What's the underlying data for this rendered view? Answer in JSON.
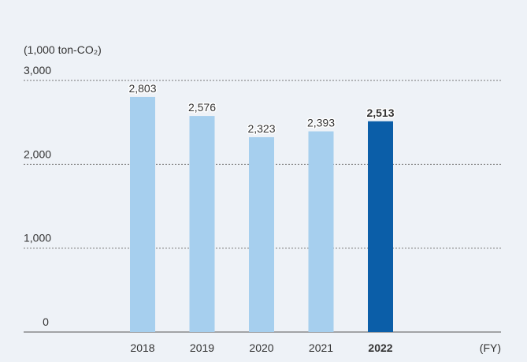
{
  "chart_data": {
    "type": "bar",
    "y_label": "(1,000 ton-CO₂)",
    "x_label": "(FY)",
    "categories": [
      "2018",
      "2019",
      "2020",
      "2021",
      "2022"
    ],
    "values": [
      2803,
      2576,
      2323,
      2393,
      2513
    ],
    "value_labels": [
      "2,803",
      "2,576",
      "2,323",
      "2,393",
      "2,513"
    ],
    "colors": [
      "#a6cfee",
      "#a6cfee",
      "#a6cfee",
      "#a6cfee",
      "#0b5ea8"
    ],
    "ylim": [
      0,
      3000
    ],
    "yticks": [
      0,
      {
        "value": 1000,
        "label": "1,000"
      },
      {
        "value": 2000,
        "label": "2,000"
      },
      {
        "value": 3000,
        "label": "3,000"
      }
    ],
    "grid": true
  }
}
